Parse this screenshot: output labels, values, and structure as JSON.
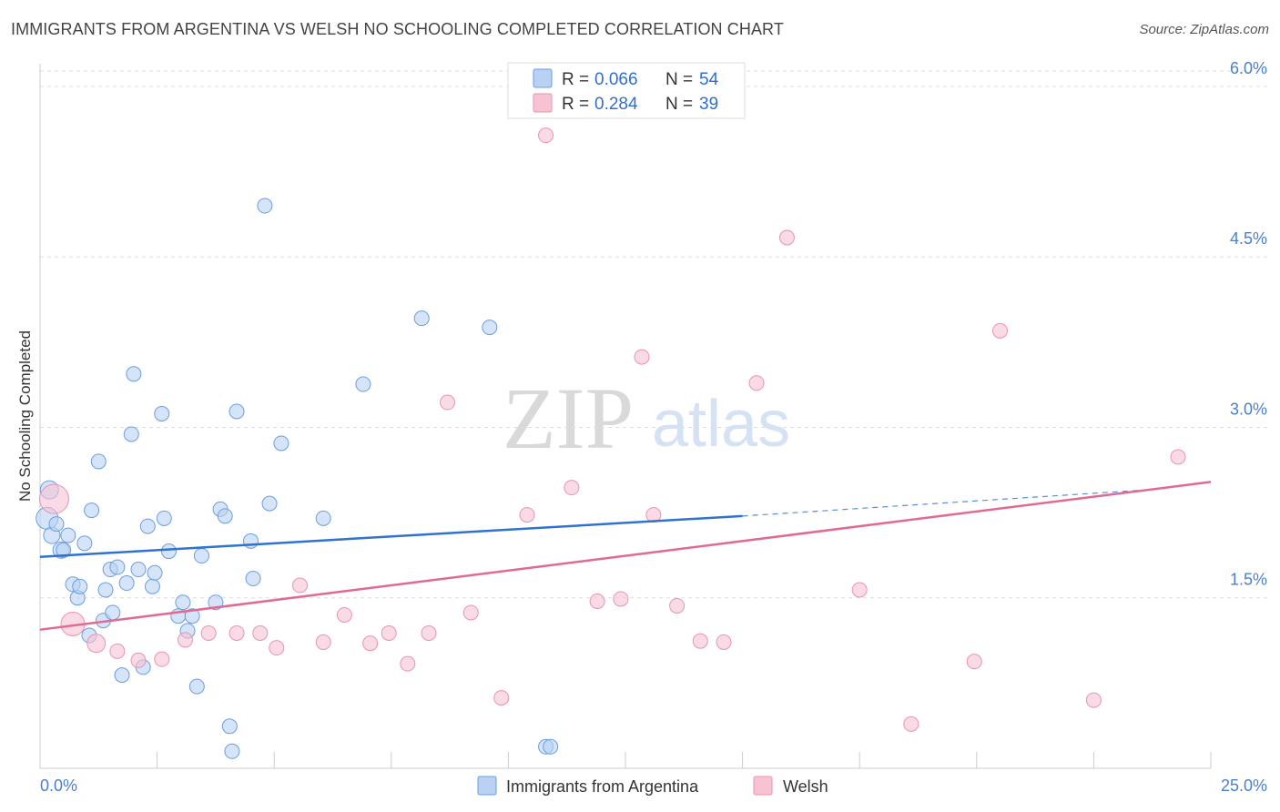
{
  "title": "IMMIGRANTS FROM ARGENTINA VS WELSH NO SCHOOLING COMPLETED CORRELATION CHART",
  "source": "Source: ZipAtlas.com",
  "watermark": {
    "zip": "ZIP",
    "atlas": "atlas"
  },
  "legend": {
    "series": [
      {
        "r_label": "R =",
        "r_value": "0.066",
        "n_label": "N =",
        "n_value": "54"
      },
      {
        "r_label": "R =",
        "r_value": "0.284",
        "n_label": "N =",
        "n_value": "39"
      }
    ]
  },
  "chart_data": {
    "type": "scatter",
    "title": "IMMIGRANTS FROM ARGENTINA VS WELSH NO SCHOOLING COMPLETED CORRELATION CHART",
    "xlabel": "",
    "ylabel": "No Schooling Completed",
    "xlim": [
      0,
      25
    ],
    "ylim": [
      0,
      6.2
    ],
    "x_tick_labels": [
      "0.0%",
      "25.0%"
    ],
    "y_ticks": [
      1.5,
      3.0,
      4.5,
      6.0
    ],
    "y_tick_labels": [
      "1.5%",
      "3.0%",
      "4.5%",
      "6.0%"
    ],
    "grid": true,
    "legend_position": "top-center",
    "colors": {
      "blue_fill": "#b9d2f3",
      "blue_stroke": "#6b9ee0",
      "blue_line": "#2f72d0",
      "pink_fill": "#f7c3d3",
      "pink_stroke": "#e993b0",
      "pink_line": "#e06a93"
    },
    "series": [
      {
        "name": "Immigrants from Argentina",
        "color": "#2f72d0",
        "r": 0.066,
        "n": 54,
        "trend": {
          "x": [
            0,
            15
          ],
          "y": [
            1.86,
            2.22
          ],
          "dashed_extension": {
            "x": [
              15,
              24
            ],
            "y": [
              2.22,
              2.46
            ]
          }
        },
        "points": [
          {
            "x": 0.15,
            "y": 2.2,
            "s": 12
          },
          {
            "x": 0.2,
            "y": 2.45,
            "s": 10
          },
          {
            "x": 0.25,
            "y": 2.05,
            "s": 9
          },
          {
            "x": 0.35,
            "y": 2.15,
            "s": 8
          },
          {
            "x": 0.45,
            "y": 1.92,
            "s": 9
          },
          {
            "x": 0.5,
            "y": 1.92,
            "s": 8
          },
          {
            "x": 0.6,
            "y": 2.05,
            "s": 8
          },
          {
            "x": 0.7,
            "y": 1.62,
            "s": 8
          },
          {
            "x": 0.8,
            "y": 1.5,
            "s": 8
          },
          {
            "x": 0.85,
            "y": 1.6,
            "s": 8
          },
          {
            "x": 0.95,
            "y": 1.98,
            "s": 8
          },
          {
            "x": 1.05,
            "y": 1.17,
            "s": 8
          },
          {
            "x": 1.1,
            "y": 2.27,
            "s": 8
          },
          {
            "x": 1.25,
            "y": 2.7,
            "s": 8
          },
          {
            "x": 1.35,
            "y": 1.3,
            "s": 8
          },
          {
            "x": 1.4,
            "y": 1.57,
            "s": 8
          },
          {
            "x": 1.5,
            "y": 1.75,
            "s": 8
          },
          {
            "x": 1.55,
            "y": 1.37,
            "s": 8
          },
          {
            "x": 1.65,
            "y": 1.77,
            "s": 8
          },
          {
            "x": 1.75,
            "y": 0.82,
            "s": 8
          },
          {
            "x": 1.85,
            "y": 1.63,
            "s": 8
          },
          {
            "x": 1.95,
            "y": 2.94,
            "s": 8
          },
          {
            "x": 2.0,
            "y": 3.47,
            "s": 8
          },
          {
            "x": 2.1,
            "y": 1.75,
            "s": 8
          },
          {
            "x": 2.2,
            "y": 0.89,
            "s": 8
          },
          {
            "x": 2.3,
            "y": 2.13,
            "s": 8
          },
          {
            "x": 2.4,
            "y": 1.6,
            "s": 8
          },
          {
            "x": 2.45,
            "y": 1.72,
            "s": 8
          },
          {
            "x": 2.6,
            "y": 3.12,
            "s": 8
          },
          {
            "x": 2.65,
            "y": 2.2,
            "s": 8
          },
          {
            "x": 2.75,
            "y": 1.91,
            "s": 8
          },
          {
            "x": 2.95,
            "y": 1.34,
            "s": 8
          },
          {
            "x": 3.05,
            "y": 1.46,
            "s": 8
          },
          {
            "x": 3.15,
            "y": 1.21,
            "s": 8
          },
          {
            "x": 3.25,
            "y": 1.34,
            "s": 8
          },
          {
            "x": 3.35,
            "y": 0.72,
            "s": 8
          },
          {
            "x": 3.45,
            "y": 1.87,
            "s": 8
          },
          {
            "x": 3.75,
            "y": 1.46,
            "s": 8
          },
          {
            "x": 3.85,
            "y": 2.28,
            "s": 8
          },
          {
            "x": 3.95,
            "y": 2.22,
            "s": 8
          },
          {
            "x": 4.05,
            "y": 0.37,
            "s": 8
          },
          {
            "x": 4.1,
            "y": 0.15,
            "s": 8
          },
          {
            "x": 4.2,
            "y": 3.14,
            "s": 8
          },
          {
            "x": 4.5,
            "y": 2.0,
            "s": 8
          },
          {
            "x": 4.55,
            "y": 1.67,
            "s": 8
          },
          {
            "x": 4.8,
            "y": 4.95,
            "s": 8
          },
          {
            "x": 4.9,
            "y": 2.33,
            "s": 8
          },
          {
            "x": 5.15,
            "y": 2.86,
            "s": 8
          },
          {
            "x": 6.05,
            "y": 2.2,
            "s": 8
          },
          {
            "x": 6.9,
            "y": 3.38,
            "s": 8
          },
          {
            "x": 8.15,
            "y": 3.96,
            "s": 8
          },
          {
            "x": 9.6,
            "y": 3.88,
            "s": 8
          },
          {
            "x": 10.8,
            "y": 0.19,
            "s": 8
          },
          {
            "x": 10.9,
            "y": 0.19,
            "s": 8
          }
        ]
      },
      {
        "name": "Welsh",
        "color": "#e06a93",
        "r": 0.284,
        "n": 39,
        "trend": {
          "x": [
            0,
            25
          ],
          "y": [
            1.22,
            2.52
          ]
        },
        "points": [
          {
            "x": 0.3,
            "y": 2.37,
            "s": 16
          },
          {
            "x": 0.7,
            "y": 1.27,
            "s": 13
          },
          {
            "x": 1.2,
            "y": 1.1,
            "s": 10
          },
          {
            "x": 1.65,
            "y": 1.03,
            "s": 8
          },
          {
            "x": 2.1,
            "y": 0.95,
            "s": 8
          },
          {
            "x": 2.6,
            "y": 0.96,
            "s": 8
          },
          {
            "x": 3.1,
            "y": 1.13,
            "s": 8
          },
          {
            "x": 3.6,
            "y": 1.19,
            "s": 8
          },
          {
            "x": 4.2,
            "y": 1.19,
            "s": 8
          },
          {
            "x": 4.7,
            "y": 1.19,
            "s": 8
          },
          {
            "x": 5.05,
            "y": 1.06,
            "s": 8
          },
          {
            "x": 5.55,
            "y": 1.61,
            "s": 8
          },
          {
            "x": 6.05,
            "y": 1.11,
            "s": 8
          },
          {
            "x": 6.5,
            "y": 1.35,
            "s": 8
          },
          {
            "x": 7.05,
            "y": 1.1,
            "s": 8
          },
          {
            "x": 7.45,
            "y": 1.19,
            "s": 8
          },
          {
            "x": 7.85,
            "y": 0.92,
            "s": 8
          },
          {
            "x": 8.3,
            "y": 1.19,
            "s": 8
          },
          {
            "x": 8.7,
            "y": 3.22,
            "s": 8
          },
          {
            "x": 9.2,
            "y": 1.37,
            "s": 8
          },
          {
            "x": 9.85,
            "y": 0.62,
            "s": 8
          },
          {
            "x": 10.4,
            "y": 2.23,
            "s": 8
          },
          {
            "x": 10.8,
            "y": 5.57,
            "s": 8
          },
          {
            "x": 11.35,
            "y": 2.47,
            "s": 8
          },
          {
            "x": 11.9,
            "y": 1.47,
            "s": 8
          },
          {
            "x": 12.4,
            "y": 1.49,
            "s": 8
          },
          {
            "x": 12.85,
            "y": 3.62,
            "s": 8
          },
          {
            "x": 13.1,
            "y": 2.23,
            "s": 8
          },
          {
            "x": 13.6,
            "y": 1.43,
            "s": 8
          },
          {
            "x": 14.1,
            "y": 1.12,
            "s": 8
          },
          {
            "x": 14.6,
            "y": 1.11,
            "s": 8
          },
          {
            "x": 15.3,
            "y": 3.39,
            "s": 8
          },
          {
            "x": 15.95,
            "y": 4.67,
            "s": 8
          },
          {
            "x": 17.5,
            "y": 1.57,
            "s": 8
          },
          {
            "x": 18.6,
            "y": 0.39,
            "s": 8
          },
          {
            "x": 19.95,
            "y": 0.94,
            "s": 8
          },
          {
            "x": 20.5,
            "y": 3.85,
            "s": 8
          },
          {
            "x": 22.5,
            "y": 0.6,
            "s": 8
          },
          {
            "x": 24.3,
            "y": 2.74,
            "s": 8
          }
        ]
      }
    ]
  }
}
